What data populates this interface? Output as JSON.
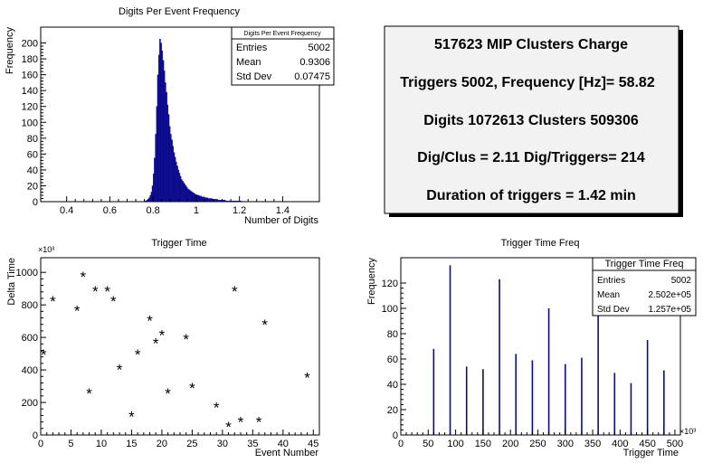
{
  "chart_data": [
    {
      "type": "histogram",
      "title": "Digits Per Event Frequency",
      "xlabel": "Number of Digits",
      "ylabel": "Frequency",
      "xlim": [
        0.28,
        1.57
      ],
      "ylim": [
        0,
        220
      ],
      "xticks": [
        0.4,
        0.6,
        0.8,
        1.0,
        1.2,
        1.4
      ],
      "xtick_labels": [
        "0.4",
        "0.6",
        "0.8",
        "1",
        "1.2",
        "1.4"
      ],
      "yticks": [
        0,
        20,
        40,
        60,
        80,
        100,
        120,
        140,
        160,
        180,
        200
      ],
      "bin_start": 0.76,
      "bin_width": 0.005,
      "values": [
        1,
        1,
        2,
        3,
        5,
        8,
        12,
        20,
        35,
        55,
        85,
        120,
        160,
        185,
        205,
        200,
        190,
        178,
        165,
        150,
        138,
        122,
        110,
        95,
        85,
        78,
        70,
        62,
        56,
        50,
        45,
        40,
        36,
        32,
        28,
        26,
        24,
        22,
        20,
        18,
        16,
        15,
        14,
        13,
        12,
        11,
        10,
        9,
        9,
        8,
        8,
        7,
        7,
        6,
        6,
        6,
        5,
        5,
        5,
        4,
        4,
        4,
        4,
        3,
        3,
        3,
        3,
        3,
        2,
        2,
        2,
        2,
        2,
        2,
        2,
        1,
        1,
        1,
        1,
        1,
        1,
        1,
        1,
        1,
        1,
        1,
        1,
        1,
        1,
        1
      ],
      "stats": {
        "title": "Digits Per Event Frequency",
        "rows": [
          {
            "label": "Entries",
            "value": "5002"
          },
          {
            "label": "Mean",
            "value": "0.9306"
          },
          {
            "label": "Std Dev",
            "value": "0.07475"
          }
        ]
      }
    },
    {
      "type": "scatter",
      "title": "Trigger Time",
      "xlabel": "Event Number",
      "ylabel": "Delta Time",
      "y_multiplier": "×10³",
      "xlim": [
        0,
        46
      ],
      "ylim": [
        0,
        1090
      ],
      "xticks": [
        0,
        5,
        10,
        15,
        20,
        25,
        30,
        35,
        40,
        45
      ],
      "yticks": [
        0,
        200,
        400,
        600,
        800,
        1000
      ],
      "marker": "*",
      "points": [
        [
          0.5,
          500
        ],
        [
          2,
          830
        ],
        [
          6,
          770
        ],
        [
          7,
          980
        ],
        [
          8,
          260
        ],
        [
          9,
          890
        ],
        [
          11,
          890
        ],
        [
          12,
          830
        ],
        [
          13,
          410
        ],
        [
          15,
          120
        ],
        [
          16,
          500
        ],
        [
          18,
          710
        ],
        [
          19,
          570
        ],
        [
          20,
          620
        ],
        [
          21,
          260
        ],
        [
          24,
          595
        ],
        [
          25,
          295
        ],
        [
          29,
          175
        ],
        [
          31,
          55
        ],
        [
          32,
          890
        ],
        [
          33,
          85
        ],
        [
          36,
          85
        ],
        [
          37,
          685
        ],
        [
          44,
          360
        ]
      ]
    },
    {
      "type": "bar",
      "title": "Trigger Time Freq",
      "xlabel": "Trigger Time",
      "ylabel": "Frequency",
      "x_multiplier": "×10³",
      "xlim": [
        0,
        510
      ],
      "ylim": [
        0,
        140
      ],
      "xticks": [
        0,
        50,
        100,
        150,
        200,
        250,
        300,
        350,
        400,
        450,
        500
      ],
      "yticks": [
        0,
        20,
        40,
        60,
        80,
        100,
        120
      ],
      "x": [
        60,
        90,
        120,
        150,
        180,
        210,
        240,
        270,
        300,
        330,
        360,
        390,
        420,
        450,
        480
      ],
      "values": [
        68,
        134,
        54,
        52,
        123,
        64,
        59,
        100,
        56,
        61,
        95,
        49,
        41,
        75,
        51
      ],
      "stats": {
        "title": "Trigger Time Freq",
        "rows": [
          {
            "label": "Entries",
            "value": "5002"
          },
          {
            "label": "Mean",
            "value": "2.502e+05"
          },
          {
            "label": "Std Dev",
            "value": "1.257e+05"
          }
        ]
      }
    }
  ],
  "info_box": {
    "lines": [
      "517623 MIP Clusters Charge",
      "Triggers 5002, Frequency [Hz]= 58.82",
      "Digits 1072613 Clusters 509306",
      "Dig/Clus = 2.11 Dig/Triggers= 214",
      "Duration of triggers = 1.42 min"
    ]
  },
  "colors": {
    "hist_fill": "#0a0a8c",
    "bar_color": "#0a0a8c",
    "frame": "#000000",
    "shadow": "#000000"
  }
}
